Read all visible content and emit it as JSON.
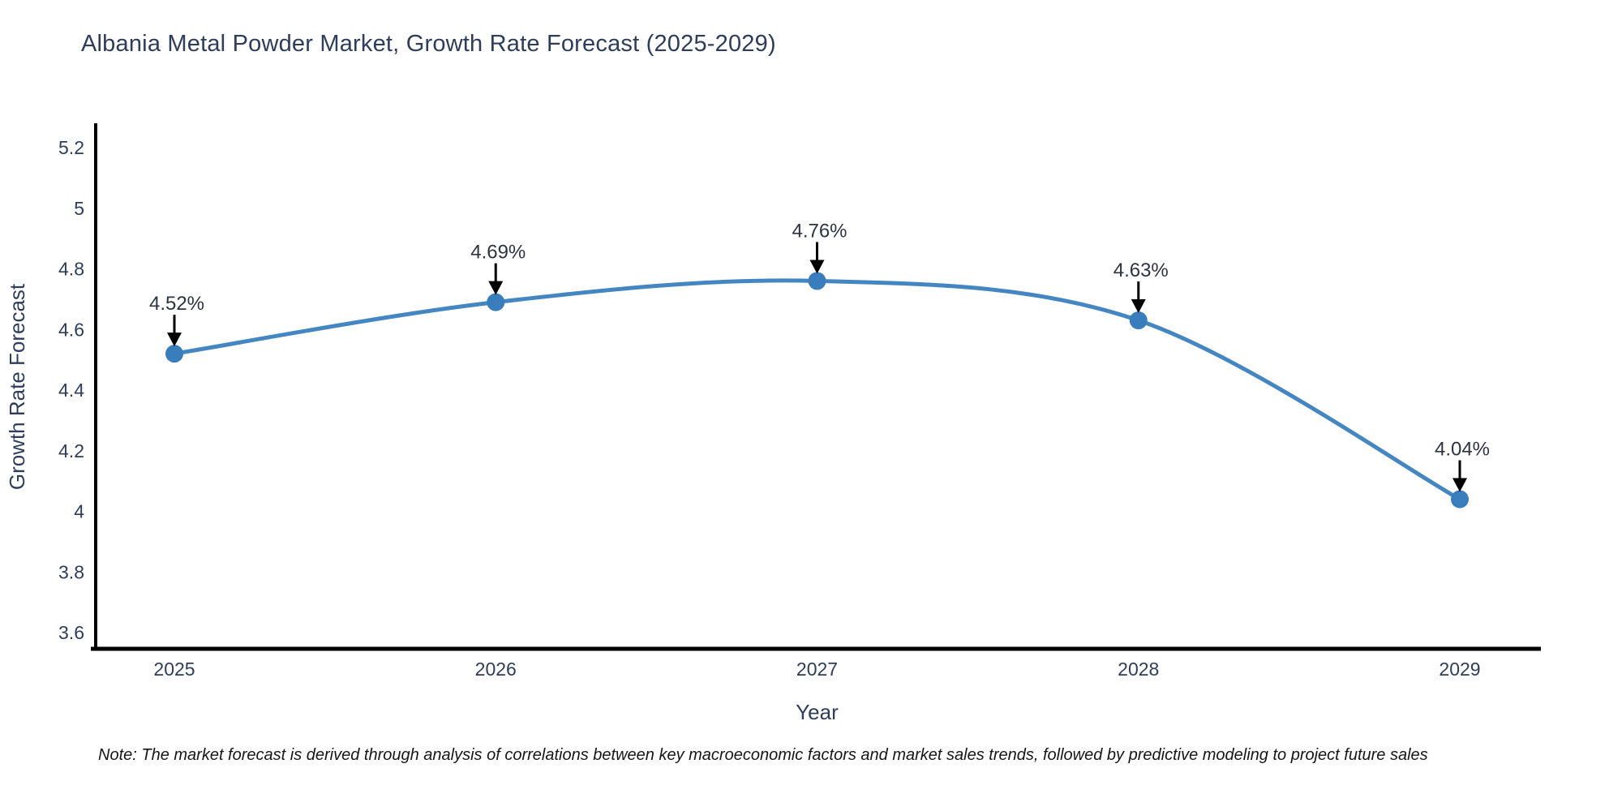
{
  "title": "Albania Metal Powder Market, Growth Rate Forecast (2025-2029)",
  "note": "Note: The market forecast is derived through analysis of correlations between key macroeconomic factors and market sales trends, followed by predictive modeling to project future sales",
  "chart_data": {
    "type": "line",
    "title": "Albania Metal Powder Market, Growth Rate Forecast (2025-2029)",
    "x": [
      "2025",
      "2026",
      "2027",
      "2028",
      "2029"
    ],
    "values": [
      4.52,
      4.69,
      4.76,
      4.63,
      4.04
    ],
    "point_labels": [
      "4.52%",
      "4.69%",
      "4.76%",
      "4.63%",
      "4.04%"
    ],
    "xlabel": "Year",
    "ylabel": "Growth Rate Forecast",
    "y_ticks": [
      3.6,
      3.8,
      4,
      4.2,
      4.4,
      4.6,
      4.8,
      5,
      5.2
    ],
    "ylim": [
      3.55,
      5.27
    ],
    "grid": false,
    "legend": "none",
    "line_shape": "spline",
    "annotation_style": "down-arrow",
    "colors": {
      "line": "#4486c2",
      "marker": "#3a7dbc",
      "axis": "#000000",
      "tick_text": "#2e3d59",
      "point_label_text": "#2c3342",
      "arrow": "#000000"
    }
  }
}
